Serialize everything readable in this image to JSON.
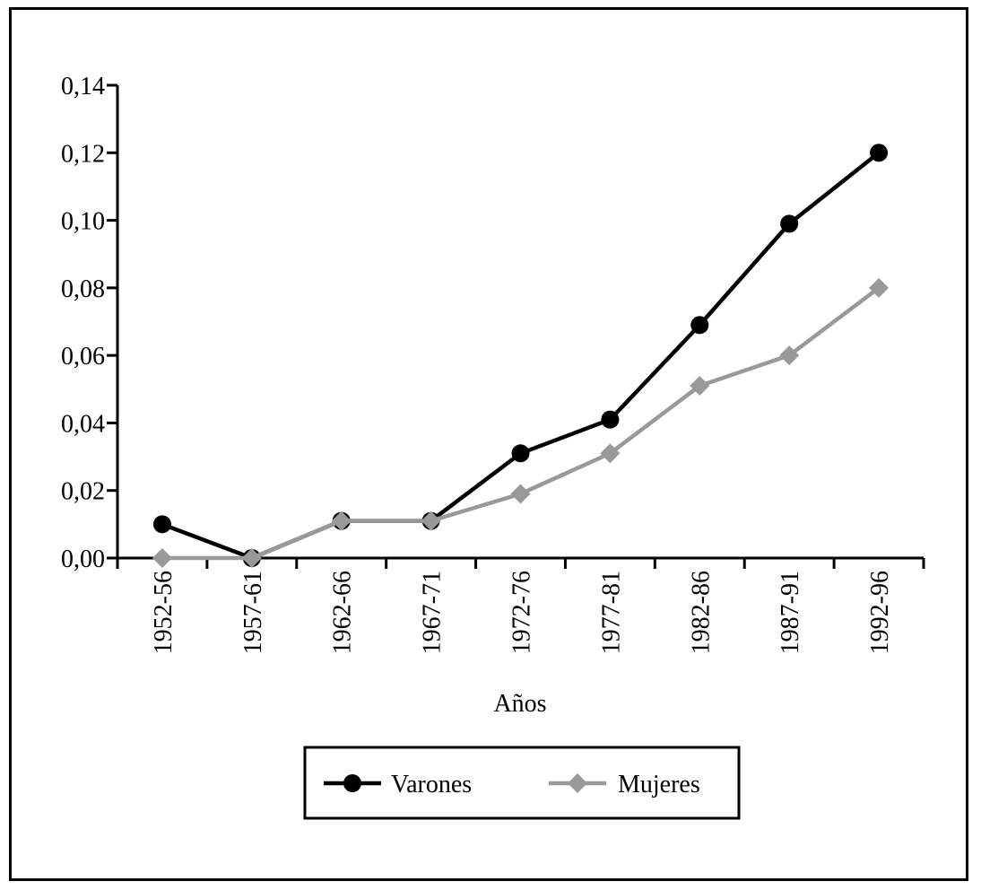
{
  "chart_data": {
    "type": "line",
    "categories": [
      "1952-56",
      "1957-61",
      "1962-66",
      "1967-71",
      "1972-76",
      "1977-81",
      "1982-86",
      "1987-91",
      "1992-96"
    ],
    "series": [
      {
        "name": "Varones",
        "values": [
          0.01,
          0.0,
          0.011,
          0.011,
          0.031,
          0.041,
          0.069,
          0.099,
          0.12
        ],
        "color": "#000000",
        "marker": "circle"
      },
      {
        "name": "Mujeres",
        "values": [
          0.0,
          0.0,
          0.011,
          0.011,
          0.019,
          0.031,
          0.051,
          0.06,
          0.08
        ],
        "color": "#999999",
        "marker": "diamond"
      }
    ],
    "yticks": [
      "0,00",
      "0,02",
      "0,04",
      "0,06",
      "0,08",
      "0,10",
      "0,12",
      "0,14"
    ],
    "ylim": [
      0,
      0.14
    ],
    "xlabel": "Años",
    "ylabel": "",
    "title": "",
    "grid": false,
    "legend": "bottom-center-boxed"
  }
}
